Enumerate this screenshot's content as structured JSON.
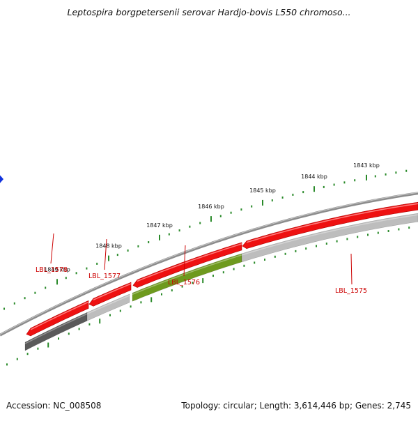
{
  "title": "Leptospira borgpetersenii serovar Hardjo-bovis L550 chromoso...",
  "footer": {
    "accession_label": "Accession:",
    "accession": "NC_008508",
    "topology_label": "Topology:",
    "topology": "circular",
    "length_label": "Length:",
    "length": "3,614,446 bp",
    "genes_label": "Genes:",
    "genes": "2,745"
  },
  "colors": {
    "backbone": "#8c8c8c",
    "forward_gene": "#ee1111",
    "reverse_gene_dark": "#5a5a5a",
    "reverse_gene_light": "#bdbdbd",
    "reverse_gene_highlight": "#6e9a1e",
    "tick": "#2a8a2a",
    "label": "#cc0000",
    "position_marker": "#1133dd"
  },
  "position_marker_icon": "diamond-marker-icon",
  "ticks": [
    {
      "label": "1849 kbp"
    },
    {
      "label": "1848 kbp"
    },
    {
      "label": "1847 kbp"
    },
    {
      "label": "1846 kbp"
    },
    {
      "label": "1845 kbp"
    },
    {
      "label": "1844 kbp"
    },
    {
      "label": "1843 kbp"
    }
  ],
  "forward_genes": [
    {
      "strand": "+",
      "color": "forward_gene"
    },
    {
      "strand": "+",
      "color": "forward_gene"
    },
    {
      "strand": "+",
      "color": "forward_gene"
    },
    {
      "strand": "+",
      "color": "forward_gene"
    }
  ],
  "reverse_genes": [
    {
      "strand": "-",
      "color": "reverse_gene_dark"
    },
    {
      "strand": "-",
      "color": "reverse_gene_light"
    },
    {
      "strand": "-",
      "color": "reverse_gene_highlight"
    },
    {
      "strand": "-",
      "color": "reverse_gene_light"
    }
  ],
  "gene_labels": [
    {
      "text": "LBL_1578"
    },
    {
      "text": "LBL_1577"
    },
    {
      "text": "LBL_1576"
    },
    {
      "text": "LBL_1575"
    }
  ]
}
